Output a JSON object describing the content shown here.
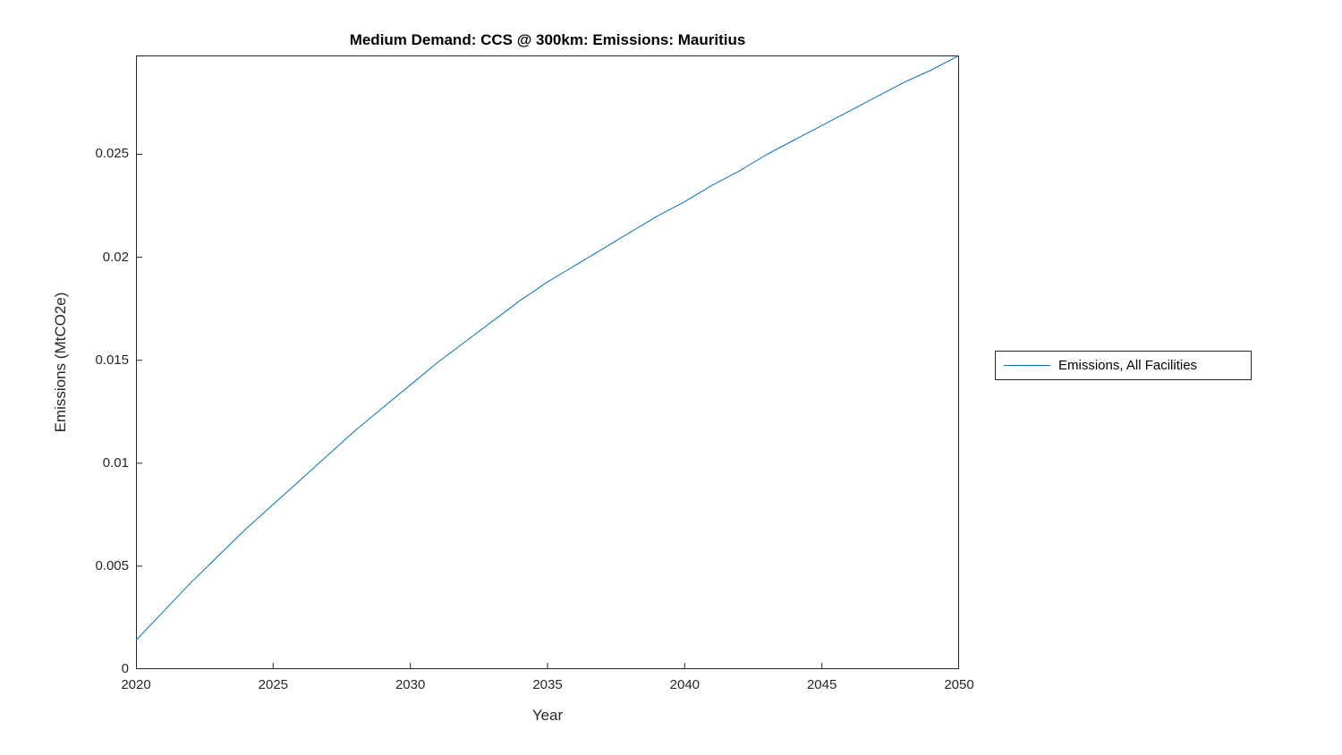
{
  "figure": {
    "background": "#ffffff"
  },
  "chart_data": {
    "type": "line",
    "title": "Medium Demand: CCS @ 300km: Emissions: Mauritius",
    "xlabel": "Year",
    "ylabel": "Emissions (MtCO2e)",
    "xlim": [
      2020,
      2050
    ],
    "ylim": [
      0,
      0.0298
    ],
    "xticks": [
      2020,
      2025,
      2030,
      2035,
      2040,
      2045,
      2050
    ],
    "xtick_labels": [
      "2020",
      "2025",
      "2030",
      "2035",
      "2040",
      "2045",
      "2050"
    ],
    "yticks": [
      0,
      0.005,
      0.01,
      0.015,
      0.02,
      0.025
    ],
    "ytick_labels": [
      "0",
      "0.005",
      "0.01",
      "0.015",
      "0.02",
      "0.025"
    ],
    "grid": false,
    "axis_color": "#262626",
    "line_color": "#0072BD",
    "legend": {
      "position": "right-outside",
      "entries": [
        {
          "label": "Emissions, All Facilities",
          "color": "#0072BD"
        }
      ]
    },
    "series": [
      {
        "name": "Emissions, All Facilities",
        "x": [
          2020,
          2021,
          2022,
          2023,
          2024,
          2025,
          2026,
          2027,
          2028,
          2029,
          2030,
          2031,
          2032,
          2033,
          2034,
          2035,
          2036,
          2037,
          2038,
          2039,
          2040,
          2041,
          2042,
          2043,
          2044,
          2045,
          2046,
          2047,
          2048,
          2049,
          2050
        ],
        "values": [
          0.0014,
          0.0028,
          0.0042,
          0.0055,
          0.0068,
          0.008,
          0.0092,
          0.0104,
          0.0116,
          0.0127,
          0.0138,
          0.0149,
          0.0159,
          0.0169,
          0.0179,
          0.0188,
          0.0196,
          0.0204,
          0.0212,
          0.022,
          0.0227,
          0.0235,
          0.0242,
          0.025,
          0.0257,
          0.0264,
          0.0271,
          0.0278,
          0.0285,
          0.0291,
          0.0298
        ]
      }
    ]
  }
}
